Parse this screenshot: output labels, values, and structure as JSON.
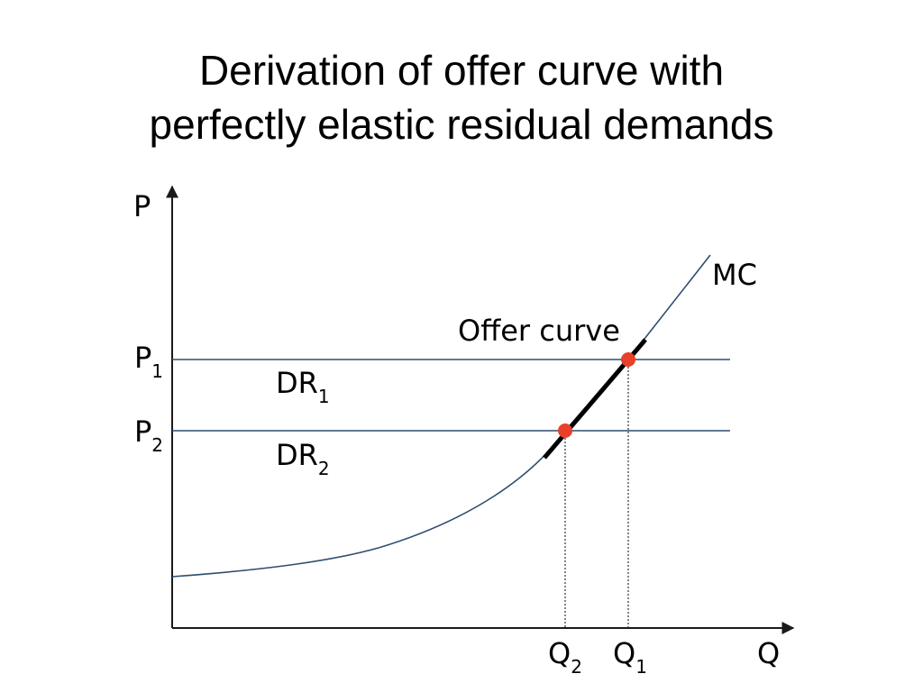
{
  "title": {
    "line1": "Derivation of offer curve with",
    "line2": "perfectly elastic residual demands"
  },
  "axes": {
    "y_label": "P",
    "x_label": "Q"
  },
  "curves": {
    "mc_label": "MC",
    "offer_curve_label": "Offer curve"
  },
  "prices": [
    {
      "main": "P",
      "sub": "1",
      "demand_main": "DR",
      "demand_sub": "1"
    },
    {
      "main": "P",
      "sub": "2",
      "demand_main": "DR",
      "demand_sub": "2"
    }
  ],
  "quantities": [
    {
      "main": "Q",
      "sub": "2"
    },
    {
      "main": "Q",
      "sub": "1"
    }
  ],
  "colors": {
    "axis": "#1a1a1a",
    "lines": "#2f4d6e",
    "offer_curve": "#000000",
    "points": "#e8402a"
  }
}
